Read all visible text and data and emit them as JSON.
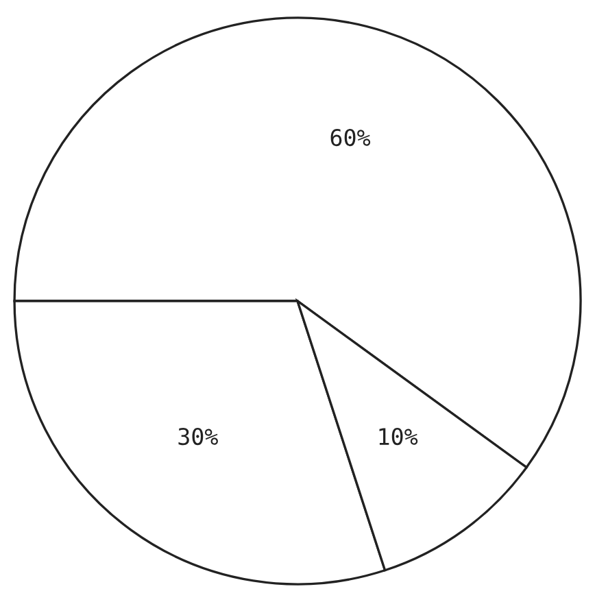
{
  "chart_data": {
    "type": "pie",
    "categories": [
      null,
      null,
      null
    ],
    "values": [
      60,
      30,
      10
    ],
    "colors": [
      "#ffffff",
      "#ffffff",
      "#ffffff"
    ],
    "value_labels": [
      "60%",
      "30%",
      "10%"
    ]
  }
}
